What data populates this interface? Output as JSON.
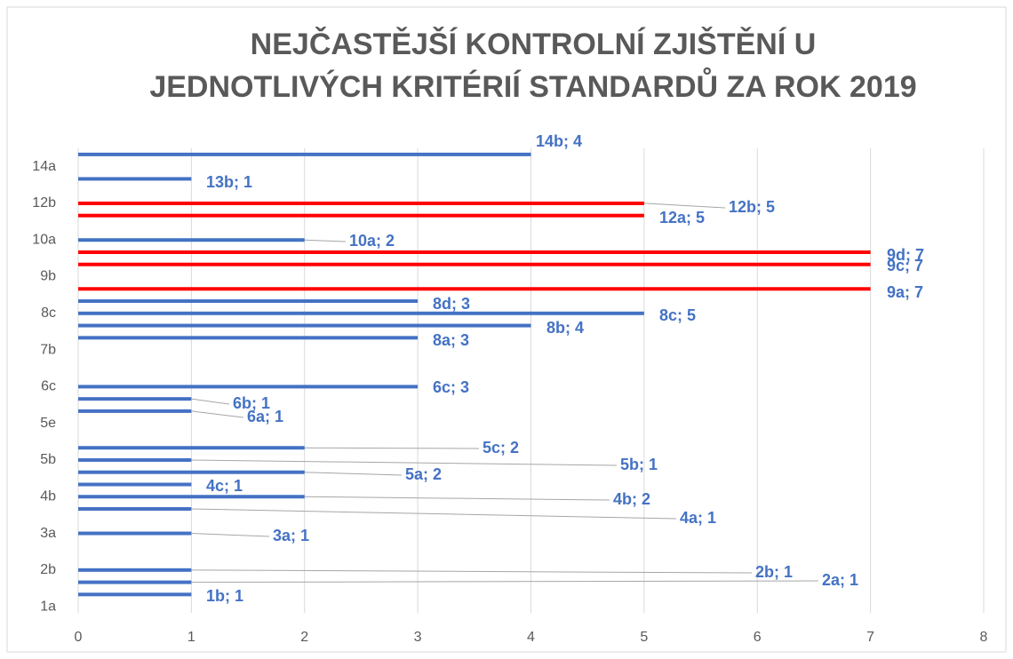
{
  "chart_data": {
    "type": "hbar",
    "title": [
      "NEJČASTĚJŠÍ KONTROLNÍ ZJIŠTĚNÍ U",
      "JEDNOTLIVÝCH KRITÉRIÍ STANDARDŮ ZA ROK 2019"
    ],
    "categories": [
      "1a",
      null,
      null,
      "2b",
      null,
      null,
      "3a",
      null,
      null,
      "4b",
      null,
      null,
      "5b",
      null,
      null,
      "5e",
      null,
      null,
      "6c",
      null,
      null,
      "7b",
      null,
      null,
      "8c",
      null,
      null,
      "9b",
      null,
      null,
      "10a",
      null,
      null,
      "12b",
      null,
      null,
      "14a",
      null
    ],
    "values": [
      null,
      1,
      1,
      1,
      null,
      null,
      1,
      null,
      1,
      2,
      1,
      2,
      1,
      2,
      null,
      null,
      1,
      1,
      3,
      null,
      null,
      null,
      3,
      4,
      5,
      3,
      7,
      null,
      7,
      7,
      2,
      null,
      5,
      5,
      null,
      1,
      null,
      4
    ],
    "value_labels": [
      null,
      "1b; 1",
      "2a; 1",
      "2b; 1",
      null,
      null,
      "3a; 1",
      null,
      "4a; 1",
      "4b; 2",
      "4c; 1",
      "5a; 2",
      "5b; 1",
      "5c; 2",
      null,
      null,
      "6a; 1",
      "6b; 1",
      "6c; 3",
      null,
      null,
      null,
      "8a; 3",
      "8b; 4",
      "8c; 5",
      "8d; 3",
      "9a; 7",
      null,
      "9c; 7",
      "9d; 7",
      "10a; 2",
      null,
      "12a; 5",
      "12b; 5",
      null,
      "13b; 1",
      null,
      "14b; 4"
    ],
    "colors": [
      null,
      "#4472c4",
      "#4472c4",
      "#4472c4",
      null,
      null,
      "#4472c4",
      null,
      "#4472c4",
      "#4472c4",
      "#4472c4",
      "#4472c4",
      "#4472c4",
      "#4472c4",
      null,
      null,
      "#4472c4",
      "#4472c4",
      "#4472c4",
      null,
      null,
      null,
      "#4472c4",
      "#4472c4",
      "#4472c4",
      "#4472c4",
      "#ff0000",
      null,
      "#ff0000",
      "#ff0000",
      "#4472c4",
      null,
      "#ff0000",
      "#ff0000",
      null,
      "#4472c4",
      null,
      "#4472c4"
    ],
    "xlim": [
      0,
      8
    ],
    "xticks": [
      0,
      1,
      2,
      3,
      4,
      5,
      6,
      7,
      8
    ],
    "grid": true
  }
}
